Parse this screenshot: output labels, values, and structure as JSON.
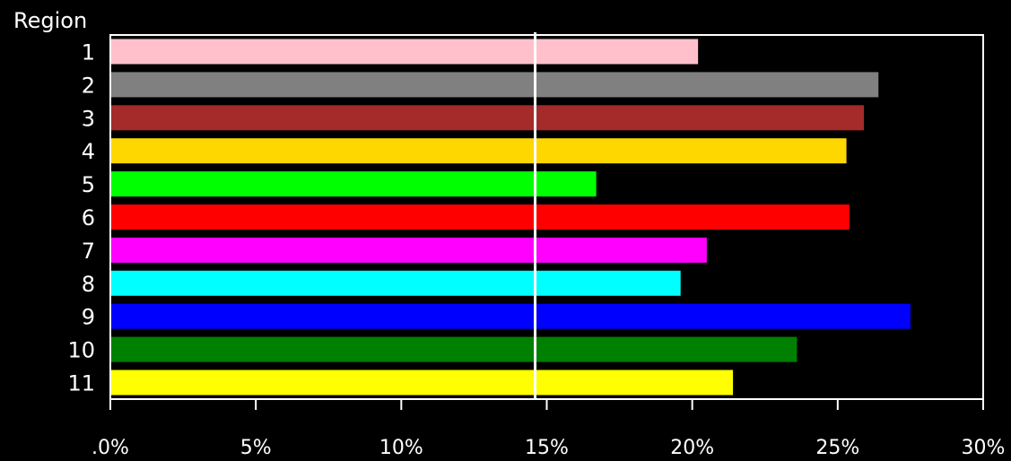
{
  "chart_data": {
    "type": "bar",
    "orientation": "horizontal",
    "title": "",
    "ylabel": "Region",
    "xlabel": "",
    "categories": [
      "1",
      "2",
      "3",
      "4",
      "5",
      "6",
      "7",
      "8",
      "9",
      "10",
      "11"
    ],
    "values": [
      20.2,
      26.4,
      25.9,
      25.3,
      16.7,
      25.4,
      20.5,
      19.6,
      27.5,
      23.6,
      21.4
    ],
    "colors": [
      "#ffc0cb",
      "#808080",
      "#a52a2a",
      "#ffd700",
      "#00ff00",
      "#ff0000",
      "#ff00ff",
      "#00ffff",
      "#0000ff",
      "#008000",
      "#ffff00"
    ],
    "xlim": [
      0,
      30
    ],
    "xticks": [
      0,
      5,
      10,
      15,
      20,
      25,
      30
    ],
    "xtick_labels": [
      ".0%",
      "5%",
      "10%",
      "15%",
      "20%",
      "25%",
      "30%"
    ],
    "reference_line": 14.6,
    "reference_line_color": "#ffffff",
    "grid": false,
    "legend": "none",
    "background": "#000000",
    "frame_color": "#ffffff"
  }
}
